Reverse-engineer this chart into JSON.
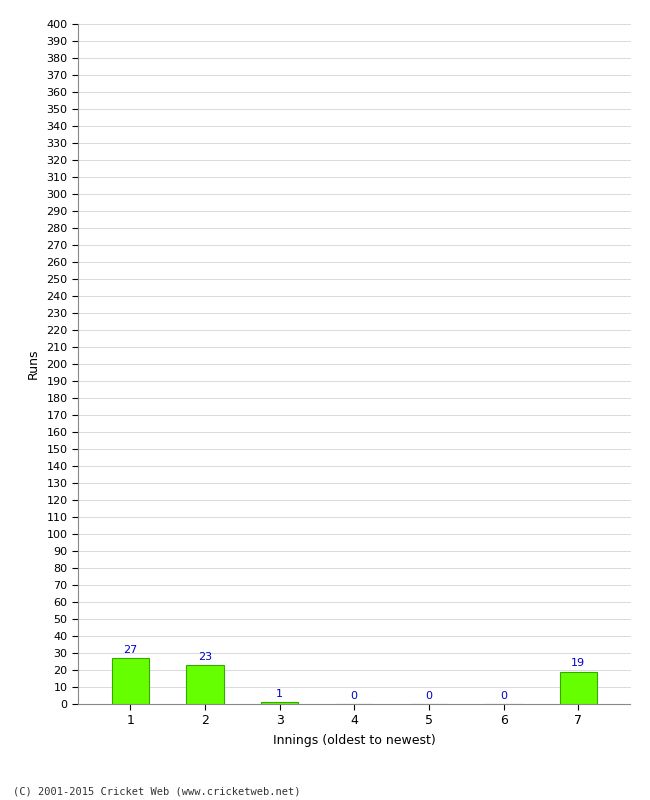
{
  "title": "",
  "xlabel": "Innings (oldest to newest)",
  "ylabel": "Runs",
  "categories": [
    "1",
    "2",
    "3",
    "4",
    "5",
    "6",
    "7"
  ],
  "values": [
    27,
    23,
    1,
    0,
    0,
    0,
    19
  ],
  "bar_color": "#66ff00",
  "bar_edge_color": "#33aa00",
  "label_color": "#0000cc",
  "ylim": [
    0,
    400
  ],
  "background_color": "#ffffff",
  "grid_color": "#cccccc",
  "footer": "(C) 2001-2015 Cricket Web (www.cricketweb.net)"
}
